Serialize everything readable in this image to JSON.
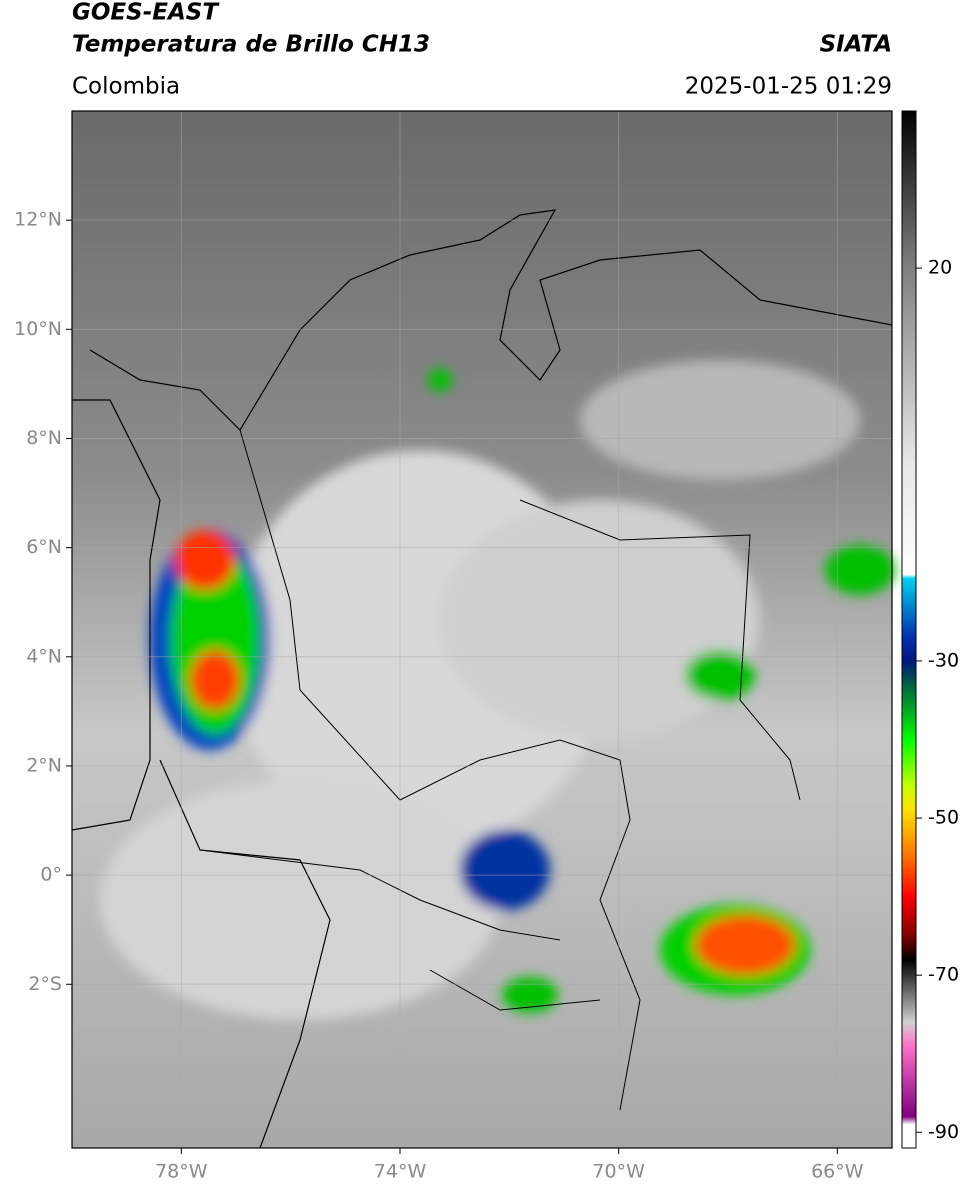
{
  "header": {
    "satellite": "GOES-EAST",
    "product": "Temperatura de Brillo CH13",
    "source": "SIATA",
    "region": "Colombia",
    "datetime": "2025-01-25 01:29"
  },
  "map": {
    "xlim": [
      -80,
      -65
    ],
    "ylim": [
      -5,
      14
    ],
    "grid": true,
    "xticks": [
      {
        "value": -78,
        "label": "78°W"
      },
      {
        "value": -74,
        "label": "74°W"
      },
      {
        "value": -70,
        "label": "70°W"
      },
      {
        "value": -66,
        "label": "66°W"
      }
    ],
    "yticks": [
      {
        "value": 12,
        "label": "12°N"
      },
      {
        "value": 10,
        "label": "10°N"
      },
      {
        "value": 8,
        "label": "8°N"
      },
      {
        "value": 6,
        "label": "6°N"
      },
      {
        "value": 4,
        "label": "4°N"
      },
      {
        "value": 2,
        "label": "2°N"
      },
      {
        "value": 0,
        "label": "0°"
      },
      {
        "value": -2,
        "label": "2°S"
      }
    ]
  },
  "colorbar": {
    "lim": [
      -92,
      40
    ],
    "ticks": [
      20,
      -30,
      -50,
      -70,
      -90
    ],
    "colormap": [
      {
        "value": 40,
        "color": "#000000"
      },
      {
        "value": 20,
        "color": "#808080"
      },
      {
        "value": -5,
        "color": "#e8e8e8"
      },
      {
        "value": -19,
        "color": "#ffffff"
      },
      {
        "value": -19.5,
        "color": "#00d0f0"
      },
      {
        "value": -27,
        "color": "#0030b0"
      },
      {
        "value": -30,
        "color": "#001880"
      },
      {
        "value": -33,
        "color": "#006040"
      },
      {
        "value": -40,
        "color": "#00ff00"
      },
      {
        "value": -46,
        "color": "#c8ff00"
      },
      {
        "value": -49,
        "color": "#ffe000"
      },
      {
        "value": -55,
        "color": "#ff7000"
      },
      {
        "value": -60,
        "color": "#ff0000"
      },
      {
        "value": -65,
        "color": "#800000"
      },
      {
        "value": -68,
        "color": "#000000"
      },
      {
        "value": -76,
        "color": "#d0d0d0"
      },
      {
        "value": -79,
        "color": "#ff70c8"
      },
      {
        "value": -88,
        "color": "#800080"
      },
      {
        "value": -89,
        "color": "#ffffff"
      }
    ]
  }
}
